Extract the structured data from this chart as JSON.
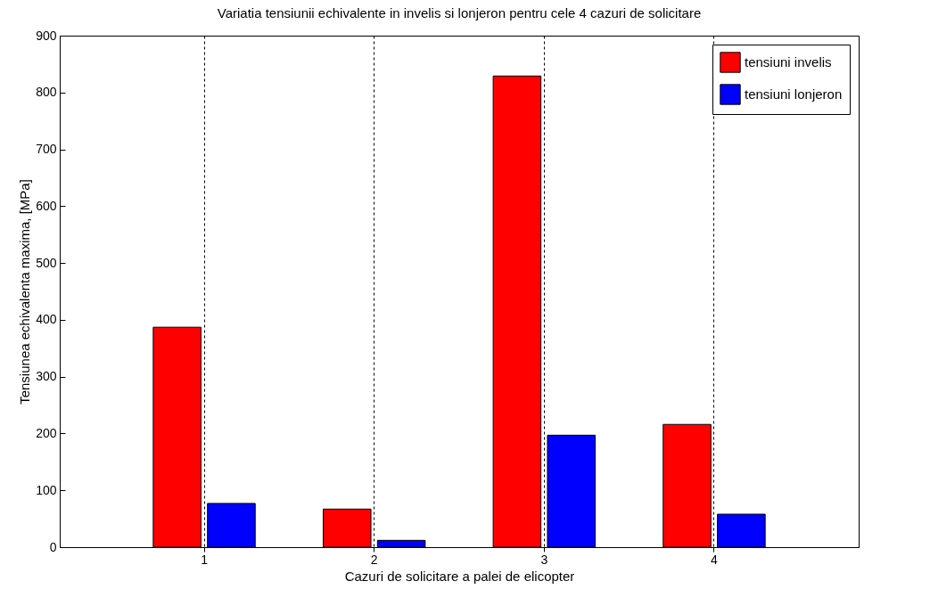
{
  "chart_data": {
    "type": "bar",
    "title": "Variatia tensiunii echivalente in invelis si lonjeron pentru cele 4 cazuri de solicitare",
    "xlabel": "Cazuri de solicitare a palei de elicopter",
    "ylabel": "Tensiunea echivalenta maxima, [MPa]",
    "categories": [
      "1",
      "2",
      "3",
      "4"
    ],
    "series": [
      {
        "name": "tensiuni invelis",
        "color": "#ff0000",
        "values": [
          387,
          67,
          829,
          216
        ]
      },
      {
        "name": "tensiuni lonjeron",
        "color": "#0000ff",
        "values": [
          77,
          12,
          197,
          58
        ]
      }
    ],
    "ylim": [
      0,
      900
    ],
    "yticks": [
      0,
      100,
      200,
      300,
      400,
      500,
      600,
      700,
      800,
      900
    ],
    "grid": "x",
    "legend": "top right"
  }
}
